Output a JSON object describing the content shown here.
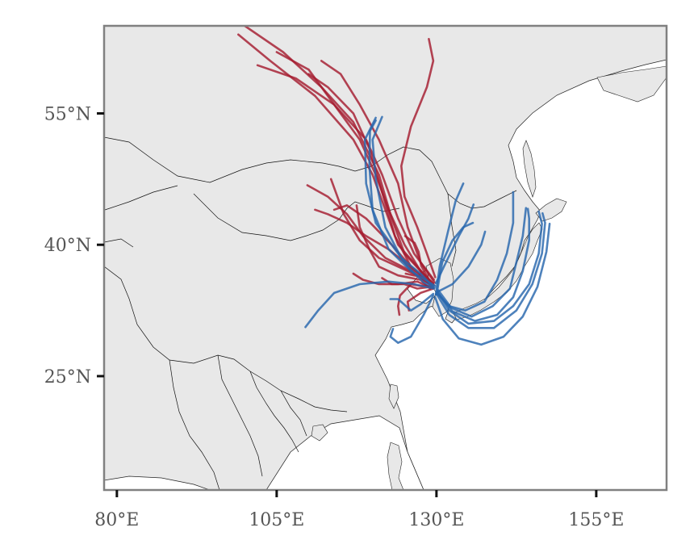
{
  "map": {
    "type": "trajectory-map",
    "extent": {
      "lon": [
        78,
        166
      ],
      "lat": [
        12,
        65
      ]
    },
    "land_color": "#e8e8e8",
    "sea_color": "#ffffff",
    "frame_color": "#808080",
    "trajectory_colors": {
      "red": "#a51c30",
      "blue": "#2766ad"
    },
    "lat_ticks": [
      {
        "value": 55,
        "label": "55°N"
      },
      {
        "value": 40,
        "label": "40°N"
      },
      {
        "value": 25,
        "label": "25°N"
      }
    ],
    "lon_ticks": [
      {
        "value": 80,
        "label": "80°E"
      },
      {
        "value": 105,
        "label": "105°E"
      },
      {
        "value": 130,
        "label": "130°E"
      },
      {
        "value": 155,
        "label": "155°E"
      }
    ]
  },
  "chart_data": {
    "type": "line",
    "title": "",
    "xlabel": "",
    "ylabel": "",
    "xlim": [
      78,
      166
    ],
    "ylim": [
      12,
      65
    ],
    "series": [
      {
        "color": "#a51c30",
        "points": [
          [
            129.5,
            35.5
          ],
          [
            127,
            37.5
          ],
          [
            124,
            40
          ],
          [
            122,
            44
          ],
          [
            120,
            48
          ],
          [
            117,
            52
          ],
          [
            111,
            57
          ],
          [
            104,
            61
          ],
          [
            99,
            64
          ]
        ]
      },
      {
        "color": "#a51c30",
        "points": [
          [
            129.5,
            35.6
          ],
          [
            127.5,
            37
          ],
          [
            125,
            39
          ],
          [
            123,
            43
          ],
          [
            121,
            48
          ],
          [
            117,
            54
          ],
          [
            112,
            58
          ],
          [
            106,
            62
          ],
          [
            100,
            65
          ]
        ]
      },
      {
        "color": "#a51c30",
        "points": [
          [
            129.3,
            35.3
          ],
          [
            126,
            37.5
          ],
          [
            123.5,
            41
          ],
          [
            121.5,
            46
          ],
          [
            119.5,
            51
          ],
          [
            117,
            55
          ],
          [
            113,
            58
          ],
          [
            110,
            59.5
          ]
        ]
      },
      {
        "color": "#a51c30",
        "points": [
          [
            129.7,
            35.7
          ],
          [
            127.5,
            38
          ],
          [
            125.5,
            42
          ],
          [
            124,
            47
          ],
          [
            121,
            52
          ],
          [
            118,
            56
          ],
          [
            115,
            59.5
          ],
          [
            112,
            61
          ]
        ]
      },
      {
        "color": "#a51c30",
        "points": [
          [
            129.5,
            35.1
          ],
          [
            127.5,
            37
          ],
          [
            125,
            40
          ],
          [
            122.5,
            44
          ],
          [
            120.5,
            48
          ],
          [
            118,
            52
          ],
          [
            114,
            56
          ],
          [
            110,
            60
          ],
          [
            105,
            62
          ]
        ]
      },
      {
        "color": "#a51c30",
        "points": [
          [
            129.6,
            36
          ],
          [
            126.5,
            39
          ],
          [
            124,
            43
          ],
          [
            121.5,
            48
          ],
          [
            119,
            52
          ],
          [
            114,
            56
          ],
          [
            108,
            59
          ],
          [
            102,
            60.5
          ]
        ]
      },
      {
        "color": "#a51c30",
        "points": [
          [
            129.8,
            36.3
          ],
          [
            128.5,
            39
          ],
          [
            127,
            42
          ],
          [
            125,
            45.5
          ],
          [
            124.5,
            49
          ],
          [
            126,
            53.5
          ],
          [
            128.5,
            58
          ],
          [
            129.5,
            61
          ],
          [
            128.8,
            63.5
          ]
        ]
      },
      {
        "color": "#a51c30",
        "points": [
          [
            129,
            35.7
          ],
          [
            126,
            37.5
          ],
          [
            123,
            40
          ],
          [
            119,
            43
          ],
          [
            116,
            44.5
          ],
          [
            114,
            44
          ]
        ]
      },
      {
        "color": "#a51c30",
        "points": [
          [
            129,
            35.5
          ],
          [
            126,
            37
          ],
          [
            122,
            38.5
          ],
          [
            118.5,
            41
          ],
          [
            116,
            43.5
          ],
          [
            113,
            45.5
          ],
          [
            109.8,
            46.8
          ]
        ]
      },
      {
        "color": "#a51c30",
        "points": [
          [
            129.3,
            35.3
          ],
          [
            127,
            36.5
          ],
          [
            124,
            37.5
          ],
          [
            121,
            38.5
          ],
          [
            118,
            40.5
          ],
          [
            115.5,
            43.5
          ],
          [
            113.5,
            47.5
          ]
        ]
      },
      {
        "color": "#a51c30",
        "points": [
          [
            129,
            35
          ],
          [
            127.5,
            36
          ],
          [
            124,
            36.5
          ],
          [
            121,
            37.5
          ],
          [
            119.5,
            39.5
          ],
          [
            118,
            42
          ],
          [
            117.5,
            44.5
          ]
        ]
      },
      {
        "color": "#a51c30",
        "points": [
          [
            129.5,
            35
          ],
          [
            127,
            35.8
          ],
          [
            124,
            35.5
          ],
          [
            121,
            35.5
          ],
          [
            118.5,
            36
          ],
          [
            117,
            36.7
          ]
        ]
      },
      {
        "color": "#a51c30",
        "points": [
          [
            129.2,
            35.2
          ],
          [
            127,
            35
          ],
          [
            125,
            35.5
          ],
          [
            123,
            35.5
          ],
          [
            121.5,
            36.2
          ]
        ]
      },
      {
        "color": "#a51c30",
        "points": [
          [
            129.4,
            35.4
          ],
          [
            127,
            36.5
          ],
          [
            125,
            38
          ],
          [
            122.5,
            39.5
          ],
          [
            119,
            41
          ],
          [
            116,
            42.5
          ],
          [
            113,
            43.5
          ],
          [
            111,
            44
          ]
        ]
      },
      {
        "color": "#a51c30",
        "points": [
          [
            129,
            35.3
          ],
          [
            127.5,
            35.3
          ],
          [
            126,
            35.5
          ],
          [
            124.3,
            34.2
          ],
          [
            124,
            33
          ],
          [
            124.2,
            32
          ]
        ]
      },
      {
        "color": "#a51c30",
        "points": [
          [
            129.5,
            35
          ],
          [
            127.5,
            34.5
          ],
          [
            125.5,
            33.5
          ],
          [
            125.7,
            32.5
          ]
        ]
      },
      {
        "color": "#a51c30",
        "points": [
          [
            129.6,
            35.4
          ],
          [
            128,
            36.3
          ],
          [
            126.5,
            36.5
          ],
          [
            125.2,
            36.7
          ]
        ]
      },
      {
        "color": "#a51c30",
        "points": [
          [
            129.4,
            35.2
          ],
          [
            128.4,
            36.6
          ],
          [
            127.6,
            37.6
          ],
          [
            127.2,
            39.2
          ],
          [
            126.6,
            40.2
          ],
          [
            125.1,
            41
          ]
        ]
      },
      {
        "color": "#2766ad",
        "points": [
          [
            130.2,
            34.6
          ],
          [
            132,
            32.5
          ],
          [
            135,
            31
          ],
          [
            139,
            31.3
          ],
          [
            142,
            33
          ],
          [
            144.5,
            35.5
          ],
          [
            146,
            39
          ],
          [
            146.5,
            42.4
          ],
          [
            146,
            43.8
          ]
        ]
      },
      {
        "color": "#2766ad",
        "points": [
          [
            130,
            34.4
          ],
          [
            132,
            32
          ],
          [
            135,
            30.5
          ],
          [
            139,
            30.5
          ],
          [
            142.5,
            32.5
          ],
          [
            145,
            35.5
          ],
          [
            146.5,
            39
          ],
          [
            147,
            42.5
          ],
          [
            146.6,
            43.6
          ]
        ]
      },
      {
        "color": "#2766ad",
        "points": [
          [
            130.1,
            34.6
          ],
          [
            132.5,
            32.4
          ],
          [
            136,
            31.3
          ],
          [
            139.5,
            32
          ],
          [
            142,
            34
          ],
          [
            143.5,
            37
          ],
          [
            144.5,
            40.5
          ],
          [
            144.5,
            43
          ],
          [
            144.3,
            44.1
          ]
        ]
      },
      {
        "color": "#2766ad",
        "points": [
          [
            130.3,
            34.8
          ],
          [
            132.3,
            32.8
          ],
          [
            135.5,
            31.8
          ],
          [
            138.8,
            33
          ],
          [
            141.5,
            35
          ],
          [
            142.5,
            38
          ],
          [
            143.5,
            41
          ],
          [
            144,
            44.2
          ]
        ]
      },
      {
        "color": "#2766ad",
        "points": [
          [
            129.8,
            34
          ],
          [
            131,
            31.5
          ],
          [
            133.5,
            29.3
          ],
          [
            137,
            28.6
          ],
          [
            140.5,
            29.5
          ],
          [
            143.5,
            31.8
          ],
          [
            145.8,
            35.2
          ],
          [
            147.2,
            39.2
          ],
          [
            147.7,
            42.4
          ]
        ]
      },
      {
        "color": "#2766ad",
        "points": [
          [
            130,
            34.5
          ],
          [
            132,
            33
          ],
          [
            134.5,
            32.5
          ],
          [
            137.5,
            33.5
          ],
          [
            139.5,
            36
          ],
          [
            141,
            39
          ],
          [
            142,
            42.5
          ],
          [
            142,
            46
          ]
        ]
      },
      {
        "color": "#2766ad",
        "points": [
          [
            129.5,
            34.2
          ],
          [
            128,
            32
          ],
          [
            126,
            29.5
          ],
          [
            124,
            28.8
          ],
          [
            122.8,
            29.5
          ],
          [
            123.2,
            30.4
          ]
        ]
      },
      {
        "color": "#2766ad",
        "points": [
          [
            129.5,
            34.4
          ],
          [
            127.5,
            33.2
          ],
          [
            126,
            32.5
          ],
          [
            124,
            33.8
          ],
          [
            122.8,
            33.8
          ]
        ]
      },
      {
        "color": "#2766ad",
        "points": [
          [
            129.7,
            35.1
          ],
          [
            128,
            35.7
          ],
          [
            125.5,
            37.5
          ],
          [
            123,
            40
          ],
          [
            120.5,
            42.5
          ],
          [
            119,
            47
          ],
          [
            118.8,
            52
          ],
          [
            120.5,
            54.5
          ]
        ]
      },
      {
        "color": "#2766ad",
        "points": [
          [
            129.5,
            35.2
          ],
          [
            127.5,
            36.7
          ],
          [
            124.5,
            38.5
          ],
          [
            122,
            42
          ],
          [
            120.5,
            47.5
          ],
          [
            120,
            52
          ],
          [
            121.5,
            54.6
          ]
        ]
      },
      {
        "color": "#2766ad",
        "points": [
          [
            129.8,
            35.3
          ],
          [
            126,
            37
          ],
          [
            122.5,
            39.5
          ],
          [
            120,
            44
          ],
          [
            119.5,
            49
          ],
          [
            119.6,
            53
          ],
          [
            120.5,
            54.2
          ]
        ]
      },
      {
        "color": "#2766ad",
        "points": [
          [
            129.6,
            35
          ],
          [
            126.5,
            35.5
          ],
          [
            122.5,
            35.8
          ],
          [
            118,
            35.5
          ],
          [
            114,
            34.5
          ],
          [
            111.5,
            32.5
          ],
          [
            109.5,
            30.6
          ]
        ]
      },
      {
        "color": "#2766ad",
        "points": [
          [
            129.9,
            35.6
          ],
          [
            131.5,
            38
          ],
          [
            133.5,
            41
          ],
          [
            135,
            43
          ],
          [
            135.8,
            44.6
          ]
        ]
      },
      {
        "color": "#2766ad",
        "points": [
          [
            130.1,
            34.6
          ],
          [
            132.5,
            35.5
          ],
          [
            135,
            37.5
          ],
          [
            137,
            40
          ],
          [
            137.6,
            41.5
          ]
        ]
      },
      {
        "color": "#2766ad",
        "points": [
          [
            129.9,
            34.3
          ],
          [
            130.5,
            37.5
          ],
          [
            131.8,
            41.5
          ],
          [
            133,
            45
          ],
          [
            134.2,
            47
          ]
        ]
      },
      {
        "color": "#2766ad",
        "points": [
          [
            130,
            34.3
          ],
          [
            130.9,
            38
          ],
          [
            132.5,
            40.5
          ],
          [
            134.2,
            42
          ],
          [
            135.7,
            42.5
          ]
        ]
      }
    ]
  }
}
